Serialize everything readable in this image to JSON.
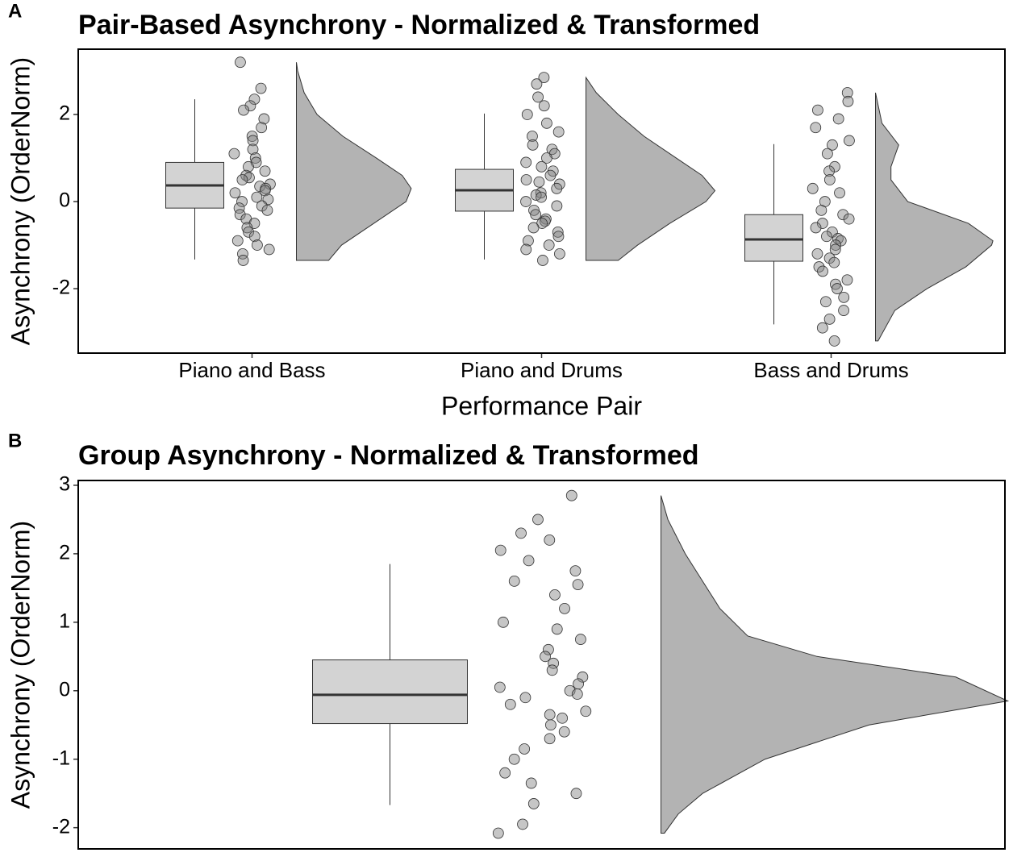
{
  "chart_data": [
    {
      "type": "raincloud",
      "panel_label": "A",
      "title": "Pair-Based Asynchrony - Normalized & Transformed",
      "x_label": "Performance Pair",
      "y_label": "Asynchrony (OrderNorm)",
      "categories": [
        "Piano and Bass",
        "Piano and Drums",
        "Bass and Drums"
      ],
      "ylim": [
        -3.48,
        3.5
      ],
      "yticks": [
        -2,
        0,
        2
      ],
      "boxes": [
        {
          "low": -1.33,
          "q1": -0.15,
          "median": 0.37,
          "q3": 0.9,
          "high": 2.35
        },
        {
          "low": -1.33,
          "q1": -0.22,
          "median": 0.26,
          "q3": 0.74,
          "high": 2.02
        },
        {
          "low": -2.82,
          "q1": -1.37,
          "median": -0.87,
          "q3": -0.3,
          "high": 1.32
        }
      ],
      "points": [
        [
          3.2,
          2.6,
          2.35,
          2.2,
          2.1,
          1.9,
          1.7,
          1.5,
          1.4,
          1.2,
          1.1,
          1.0,
          0.9,
          0.8,
          0.7,
          0.6,
          0.55,
          0.5,
          0.4,
          0.35,
          0.3,
          0.25,
          0.2,
          0.1,
          0.05,
          0,
          -0.1,
          -0.15,
          -0.2,
          -0.3,
          -0.4,
          -0.5,
          -0.6,
          -0.7,
          -0.8,
          -0.9,
          -1.0,
          -1.1,
          -1.2,
          -1.35
        ],
        [
          2.85,
          2.7,
          2.4,
          2.2,
          2.0,
          1.8,
          1.6,
          1.5,
          1.3,
          1.2,
          1.1,
          1.0,
          0.9,
          0.8,
          0.7,
          0.6,
          0.5,
          0.45,
          0.4,
          0.3,
          0.2,
          0.15,
          0.1,
          0,
          -0.1,
          -0.2,
          -0.3,
          -0.4,
          -0.45,
          -0.5,
          -0.6,
          -0.7,
          -0.8,
          -0.9,
          -1.0,
          -1.1,
          -1.2,
          -1.35
        ],
        [
          2.5,
          2.3,
          2.1,
          1.9,
          1.7,
          1.4,
          1.3,
          1.1,
          0.8,
          0.7,
          0.5,
          0.3,
          0.2,
          0,
          -0.2,
          -0.3,
          -0.4,
          -0.5,
          -0.6,
          -0.7,
          -0.8,
          -0.85,
          -0.9,
          -1.0,
          -1.1,
          -1.2,
          -1.3,
          -1.4,
          -1.5,
          -1.6,
          -1.8,
          -1.9,
          -2.0,
          -2.2,
          -2.3,
          -2.5,
          -2.7,
          -2.9,
          -3.2
        ]
      ],
      "density": [
        {
          "y": [
            -1.35,
            -1,
            -0.5,
            0,
            0.3,
            0.6,
            1,
            1.5,
            2,
            2.5,
            3,
            3.2
          ],
          "width": [
            0.25,
            0.35,
            0.6,
            0.85,
            0.89,
            0.82,
            0.62,
            0.36,
            0.16,
            0.06,
            0.01,
            0
          ]
        },
        {
          "y": [
            -1.35,
            -1,
            -0.5,
            0,
            0.25,
            0.6,
            1,
            1.5,
            2,
            2.5,
            2.85
          ],
          "width": [
            0.25,
            0.4,
            0.65,
            0.93,
            1,
            0.9,
            0.7,
            0.45,
            0.25,
            0.08,
            0
          ]
        },
        {
          "y": [
            -3.2,
            -2.5,
            -2,
            -1.5,
            -1,
            -0.9,
            -0.5,
            0,
            0.5,
            0.8,
            1.3,
            1.8,
            2.5
          ],
          "width": [
            0.02,
            0.15,
            0.4,
            0.7,
            0.9,
            0.91,
            0.72,
            0.25,
            0.12,
            0.12,
            0.18,
            0.05,
            0
          ]
        }
      ]
    },
    {
      "type": "raincloud",
      "panel_label": "B",
      "title": "Group Asynchrony - Normalized & Transformed",
      "y_label": "Asynchrony (OrderNorm)",
      "categories": [
        null
      ],
      "ylim": [
        -2.31,
        3.07
      ],
      "yticks": [
        -2,
        -1,
        0,
        1,
        2,
        3
      ],
      "boxes": [
        {
          "low": -1.67,
          "q1": -0.48,
          "median": -0.06,
          "q3": 0.45,
          "high": 1.85
        }
      ],
      "points": [
        [
          2.85,
          2.5,
          2.3,
          2.2,
          2.05,
          1.9,
          1.75,
          1.6,
          1.55,
          1.4,
          1.2,
          1.0,
          0.9,
          0.75,
          0.6,
          0.5,
          0.4,
          0.3,
          0.2,
          0.1,
          0.05,
          0,
          -0.05,
          -0.1,
          -0.2,
          -0.3,
          -0.35,
          -0.4,
          -0.5,
          -0.6,
          -0.7,
          -0.85,
          -1.0,
          -1.2,
          -1.35,
          -1.5,
          -1.65,
          -1.95,
          -2.08
        ]
      ],
      "density": [
        {
          "y": [
            -2.08,
            -1.8,
            -1.5,
            -1,
            -0.5,
            -0.15,
            0.2,
            0.5,
            0.8,
            1.2,
            1.6,
            2,
            2.5,
            2.85
          ],
          "width": [
            0.01,
            0.05,
            0.12,
            0.3,
            0.6,
            1,
            0.85,
            0.45,
            0.25,
            0.17,
            0.12,
            0.07,
            0.02,
            0
          ]
        }
      ]
    }
  ]
}
